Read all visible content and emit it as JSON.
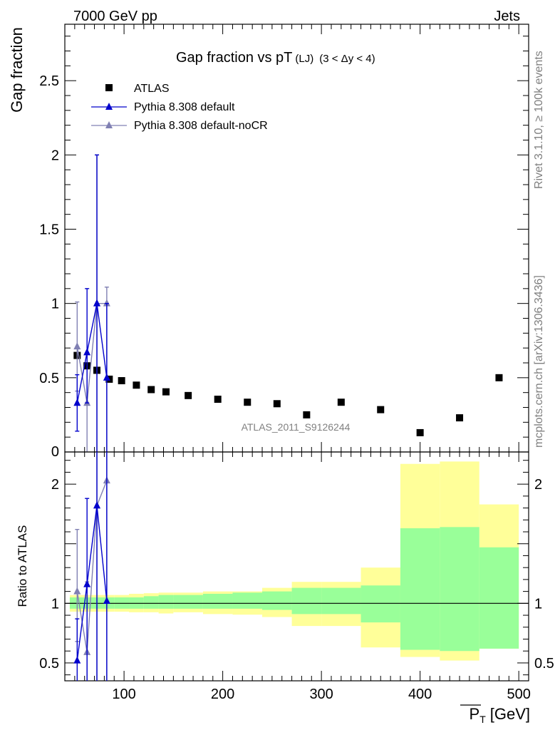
{
  "header": {
    "left": "7000 GeV pp",
    "right": "Jets"
  },
  "side_text": {
    "rivet": "Rivet 3.1.10, ≥ 100k events",
    "mcplots": "mcplots.cern.ch [arXiv:1306.3436]"
  },
  "colors": {
    "data": "#000000",
    "default": "#0000cc",
    "nocr": "#8080b3",
    "band_inner": "#99ff99",
    "band_outer": "#ffff99"
  },
  "chart_data": [
    {
      "type": "scatter",
      "title_main": "Gap fraction vs pT",
      "title_sub": "(LJ)",
      "title_tail": "(3 < Δy < 4)",
      "ylabel": "Gap fraction",
      "watermark": "ATLAS_2011_S9126244",
      "xlim": [
        40,
        510
      ],
      "ylim": [
        0,
        2.88
      ],
      "yticks": [
        0.5,
        1,
        1.5,
        2,
        2.5
      ],
      "ytick_labels": [
        "0.5",
        "1",
        "1.5",
        "2",
        "2.5"
      ],
      "ytick_zero_label": "0",
      "legend": [
        "ATLAS",
        "Pythia 8.308 default",
        "Pythia 8.308 default-noCR"
      ],
      "legend_position": "top-left",
      "series": [
        {
          "name": "ATLAS",
          "marker": "square",
          "x": [
            52.5,
            62.5,
            72.5,
            85,
            97.5,
            112.5,
            127.5,
            142.5,
            165,
            195,
            225,
            255,
            285,
            320,
            360,
            400,
            440,
            480
          ],
          "y": [
            0.65,
            0.58,
            0.55,
            0.49,
            0.48,
            0.45,
            0.42,
            0.405,
            0.38,
            0.355,
            0.335,
            0.325,
            0.25,
            0.335,
            0.285,
            0.13,
            0.23,
            0.5
          ]
        },
        {
          "name": "Pythia 8.308 default",
          "marker": "triangle",
          "x": [
            52.5,
            62.5,
            72.5,
            82.5
          ],
          "y": [
            0.33,
            0.67,
            1.0,
            0.5
          ],
          "yerr_low": [
            0.19,
            0.34,
            1.0,
            0.5
          ],
          "yerr_high": [
            0.19,
            0.43,
            1.0,
            0.5
          ]
        },
        {
          "name": "Pythia 8.308 default-noCR",
          "marker": "triangle",
          "x": [
            52.5,
            62.5,
            72.5,
            82.5
          ],
          "y": [
            0.71,
            0.33,
            1.0,
            1.0
          ],
          "yerr_low": [
            0.3,
            0.33,
            1.0,
            1.0
          ],
          "yerr_high": [
            0.3,
            0.33,
            1.0,
            0.11
          ]
        }
      ]
    },
    {
      "type": "area",
      "ylabel": "Ratio to ATLAS",
      "xlabel": "P_T [GeV]",
      "xlabel_main": "P",
      "xlabel_sub": "T",
      "xlabel_unit": "[GeV]",
      "xlim": [
        40,
        510
      ],
      "ylim": [
        0.35,
        2.27
      ],
      "xticks": [
        100,
        200,
        300,
        400,
        500
      ],
      "xtick_labels": [
        "100",
        "200",
        "300",
        "400",
        "500"
      ],
      "yticks": [
        0.5,
        1,
        2
      ],
      "ytick_labels": [
        "0.5",
        "1",
        "2"
      ],
      "bands": {
        "bin_edges": [
          45,
          60,
          65,
          80,
          90,
          105,
          120,
          135,
          150,
          180,
          210,
          240,
          270,
          300,
          340,
          380,
          420,
          460,
          500
        ],
        "inner_low": [
          0.955,
          0.955,
          0.955,
          0.955,
          0.955,
          0.955,
          0.955,
          0.955,
          0.955,
          0.955,
          0.955,
          0.945,
          0.91,
          0.91,
          0.84,
          0.61,
          0.6,
          0.62
        ],
        "inner_high": [
          1.05,
          1.05,
          1.05,
          1.05,
          1.05,
          1.05,
          1.06,
          1.07,
          1.07,
          1.08,
          1.09,
          1.1,
          1.13,
          1.13,
          1.15,
          1.63,
          1.64,
          1.47
        ],
        "outer_low": [
          0.93,
          0.93,
          0.93,
          0.93,
          0.93,
          0.925,
          0.925,
          0.915,
          0.925,
          0.91,
          0.905,
          0.885,
          0.81,
          0.81,
          0.63,
          0.55,
          0.52,
          0.62
        ],
        "outer_high": [
          1.07,
          1.07,
          1.07,
          1.07,
          1.07,
          1.08,
          1.085,
          1.09,
          1.09,
          1.1,
          1.1,
          1.13,
          1.18,
          1.18,
          1.3,
          2.17,
          2.19,
          1.83
        ]
      },
      "series": [
        {
          "name": "Pythia 8.308 default",
          "x": [
            52.5,
            62.5,
            72.5,
            82.5
          ],
          "y": [
            0.52,
            1.16,
            1.82,
            1.02
          ],
          "yerr_low": [
            0.17,
            0.81,
            1.47,
            0.67
          ],
          "yerr_high": [
            0.35,
            0.72,
            0.45,
            1.25
          ]
        },
        {
          "name": "Pythia 8.308 default-noCR",
          "x": [
            52.5,
            62.5,
            72.5,
            82.5
          ],
          "y": [
            1.1,
            0.59,
            1.82,
            2.03
          ],
          "yerr_low": [
            0.42,
            0.24,
            1.47,
            1.68
          ],
          "yerr_high": [
            0.52,
            0.59,
            0.45,
            0.24
          ]
        }
      ]
    }
  ]
}
